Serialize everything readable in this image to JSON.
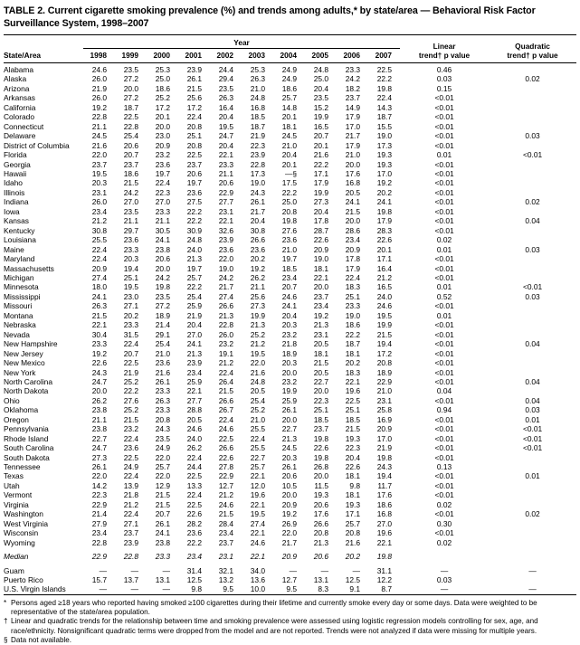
{
  "title": "TABLE 2. Current cigarette smoking prevalence (%) and trends among adults,* by state/area — Behavioral Risk Factor Surveillance System, 1998–2007",
  "table": {
    "col_state": "State/Area",
    "year_group_label": "Year",
    "years": [
      "1998",
      "1999",
      "2000",
      "2001",
      "2002",
      "2003",
      "2004",
      "2005",
      "2006",
      "2007"
    ],
    "col_linear_line1": "Linear",
    "col_linear_line2": "trend† p value",
    "col_quadratic_line1": "Quadratic",
    "col_quadratic_line2": "trend† p value",
    "rows": [
      {
        "name": "Alabama",
        "values": [
          "24.6",
          "23.5",
          "25.3",
          "23.9",
          "24.4",
          "25.3",
          "24.9",
          "24.8",
          "23.3",
          "22.5"
        ],
        "linear": "0.46",
        "quadratic": ""
      },
      {
        "name": "Alaska",
        "values": [
          "26.0",
          "27.2",
          "25.0",
          "26.1",
          "29.4",
          "26.3",
          "24.9",
          "25.0",
          "24.2",
          "22.2"
        ],
        "linear": "0.03",
        "quadratic": "0.02"
      },
      {
        "name": "Arizona",
        "values": [
          "21.9",
          "20.0",
          "18.6",
          "21.5",
          "23.5",
          "21.0",
          "18.6",
          "20.4",
          "18.2",
          "19.8"
        ],
        "linear": "0.15",
        "quadratic": ""
      },
      {
        "name": "Arkansas",
        "values": [
          "26.0",
          "27.2",
          "25.2",
          "25.6",
          "26.3",
          "24.8",
          "25.7",
          "23.5",
          "23.7",
          "22.4"
        ],
        "linear": "<0.01",
        "quadratic": ""
      },
      {
        "name": "California",
        "values": [
          "19.2",
          "18.7",
          "17.2",
          "17.2",
          "16.4",
          "16.8",
          "14.8",
          "15.2",
          "14.9",
          "14.3"
        ],
        "linear": "<0.01",
        "quadratic": ""
      },
      {
        "name": "Colorado",
        "values": [
          "22.8",
          "22.5",
          "20.1",
          "22.4",
          "20.4",
          "18.5",
          "20.1",
          "19.9",
          "17.9",
          "18.7"
        ],
        "linear": "<0.01",
        "quadratic": ""
      },
      {
        "name": "Connecticut",
        "values": [
          "21.1",
          "22.8",
          "20.0",
          "20.8",
          "19.5",
          "18.7",
          "18.1",
          "16.5",
          "17.0",
          "15.5"
        ],
        "linear": "<0.01",
        "quadratic": ""
      },
      {
        "name": "Delaware",
        "values": [
          "24.5",
          "25.4",
          "23.0",
          "25.1",
          "24.7",
          "21.9",
          "24.5",
          "20.7",
          "21.7",
          "19.0"
        ],
        "linear": "<0.01",
        "quadratic": "0.03"
      },
      {
        "name": "District of Columbia",
        "values": [
          "21.6",
          "20.6",
          "20.9",
          "20.8",
          "20.4",
          "22.3",
          "21.0",
          "20.1",
          "17.9",
          "17.3"
        ],
        "linear": "<0.01",
        "quadratic": ""
      },
      {
        "name": "Florida",
        "values": [
          "22.0",
          "20.7",
          "23.2",
          "22.5",
          "22.1",
          "23.9",
          "20.4",
          "21.6",
          "21.0",
          "19.3"
        ],
        "linear": "0.01",
        "quadratic": "<0.01"
      },
      {
        "name": "Georgia",
        "values": [
          "23.7",
          "23.7",
          "23.6",
          "23.7",
          "23.3",
          "22.8",
          "20.1",
          "22.2",
          "20.0",
          "19.3"
        ],
        "linear": "<0.01",
        "quadratic": ""
      },
      {
        "name": "Hawaii",
        "values": [
          "19.5",
          "18.6",
          "19.7",
          "20.6",
          "21.1",
          "17.3",
          "—§",
          "17.1",
          "17.6",
          "17.0"
        ],
        "linear": "<0.01",
        "quadratic": ""
      },
      {
        "name": "Idaho",
        "values": [
          "20.3",
          "21.5",
          "22.4",
          "19.7",
          "20.6",
          "19.0",
          "17.5",
          "17.9",
          "16.8",
          "19.2"
        ],
        "linear": "<0.01",
        "quadratic": ""
      },
      {
        "name": "Illinois",
        "values": [
          "23.1",
          "24.2",
          "22.3",
          "23.6",
          "22.9",
          "24.3",
          "22.2",
          "19.9",
          "20.5",
          "20.2"
        ],
        "linear": "<0.01",
        "quadratic": ""
      },
      {
        "name": "Indiana",
        "values": [
          "26.0",
          "27.0",
          "27.0",
          "27.5",
          "27.7",
          "26.1",
          "25.0",
          "27.3",
          "24.1",
          "24.1"
        ],
        "linear": "<0.01",
        "quadratic": "0.02"
      },
      {
        "name": "Iowa",
        "values": [
          "23.4",
          "23.5",
          "23.3",
          "22.2",
          "23.1",
          "21.7",
          "20.8",
          "20.4",
          "21.5",
          "19.8"
        ],
        "linear": "<0.01",
        "quadratic": ""
      },
      {
        "name": "Kansas",
        "values": [
          "21.2",
          "21.1",
          "21.1",
          "22.2",
          "22.1",
          "20.4",
          "19.8",
          "17.8",
          "20.0",
          "17.9"
        ],
        "linear": "<0.01",
        "quadratic": "0.04"
      },
      {
        "name": "Kentucky",
        "values": [
          "30.8",
          "29.7",
          "30.5",
          "30.9",
          "32.6",
          "30.8",
          "27.6",
          "28.7",
          "28.6",
          "28.3"
        ],
        "linear": "<0.01",
        "quadratic": ""
      },
      {
        "name": "Louisiana",
        "values": [
          "25.5",
          "23.6",
          "24.1",
          "24.8",
          "23.9",
          "26.6",
          "23.6",
          "22.6",
          "23.4",
          "22.6"
        ],
        "linear": "0.02",
        "quadratic": ""
      },
      {
        "name": "Maine",
        "values": [
          "22.4",
          "23.3",
          "23.8",
          "24.0",
          "23.6",
          "23.6",
          "21.0",
          "20.9",
          "20.9",
          "20.1"
        ],
        "linear": "0.01",
        "quadratic": "0.03"
      },
      {
        "name": "Maryland",
        "values": [
          "22.4",
          "20.3",
          "20.6",
          "21.3",
          "22.0",
          "20.2",
          "19.7",
          "19.0",
          "17.8",
          "17.1"
        ],
        "linear": "<0.01",
        "quadratic": ""
      },
      {
        "name": "Massachusetts",
        "values": [
          "20.9",
          "19.4",
          "20.0",
          "19.7",
          "19.0",
          "19.2",
          "18.5",
          "18.1",
          "17.9",
          "16.4"
        ],
        "linear": "<0.01",
        "quadratic": ""
      },
      {
        "name": "Michigan",
        "values": [
          "27.4",
          "25.1",
          "24.2",
          "25.7",
          "24.2",
          "26.2",
          "23.4",
          "22.1",
          "22.4",
          "21.2"
        ],
        "linear": "<0.01",
        "quadratic": ""
      },
      {
        "name": "Minnesota",
        "values": [
          "18.0",
          "19.5",
          "19.8",
          "22.2",
          "21.7",
          "21.1",
          "20.7",
          "20.0",
          "18.3",
          "16.5"
        ],
        "linear": "0.01",
        "quadratic": "<0.01"
      },
      {
        "name": "Mississippi",
        "values": [
          "24.1",
          "23.0",
          "23.5",
          "25.4",
          "27.4",
          "25.6",
          "24.6",
          "23.7",
          "25.1",
          "24.0"
        ],
        "linear": "0.52",
        "quadratic": "0.03"
      },
      {
        "name": "Missouri",
        "values": [
          "26.3",
          "27.1",
          "27.2",
          "25.9",
          "26.6",
          "27.3",
          "24.1",
          "23.4",
          "23.3",
          "24.6"
        ],
        "linear": "<0.01",
        "quadratic": ""
      },
      {
        "name": "Montana",
        "values": [
          "21.5",
          "20.2",
          "18.9",
          "21.9",
          "21.3",
          "19.9",
          "20.4",
          "19.2",
          "19.0",
          "19.5"
        ],
        "linear": "0.01",
        "quadratic": ""
      },
      {
        "name": "Nebraska",
        "values": [
          "22.1",
          "23.3",
          "21.4",
          "20.4",
          "22.8",
          "21.3",
          "20.3",
          "21.3",
          "18.6",
          "19.9"
        ],
        "linear": "<0.01",
        "quadratic": ""
      },
      {
        "name": "Nevada",
        "values": [
          "30.4",
          "31.5",
          "29.1",
          "27.0",
          "26.0",
          "25.2",
          "23.2",
          "23.1",
          "22.2",
          "21.5"
        ],
        "linear": "<0.01",
        "quadratic": ""
      },
      {
        "name": "New Hampshire",
        "values": [
          "23.3",
          "22.4",
          "25.4",
          "24.1",
          "23.2",
          "21.2",
          "21.8",
          "20.5",
          "18.7",
          "19.4"
        ],
        "linear": "<0.01",
        "quadratic": "0.04"
      },
      {
        "name": "New Jersey",
        "values": [
          "19.2",
          "20.7",
          "21.0",
          "21.3",
          "19.1",
          "19.5",
          "18.9",
          "18.1",
          "18.1",
          "17.2"
        ],
        "linear": "<0.01",
        "quadratic": ""
      },
      {
        "name": "New Mexico",
        "values": [
          "22.6",
          "22.5",
          "23.6",
          "23.9",
          "21.2",
          "22.0",
          "20.3",
          "21.5",
          "20.2",
          "20.8"
        ],
        "linear": "<0.01",
        "quadratic": ""
      },
      {
        "name": "New York",
        "values": [
          "24.3",
          "21.9",
          "21.6",
          "23.4",
          "22.4",
          "21.6",
          "20.0",
          "20.5",
          "18.3",
          "18.9"
        ],
        "linear": "<0.01",
        "quadratic": ""
      },
      {
        "name": "North Carolina",
        "values": [
          "24.7",
          "25.2",
          "26.1",
          "25.9",
          "26.4",
          "24.8",
          "23.2",
          "22.7",
          "22.1",
          "22.9"
        ],
        "linear": "<0.01",
        "quadratic": "0.04"
      },
      {
        "name": "North Dakota",
        "values": [
          "20.0",
          "22.2",
          "23.3",
          "22.1",
          "21.5",
          "20.5",
          "19.9",
          "20.0",
          "19.6",
          "21.0"
        ],
        "linear": "0.04",
        "quadratic": ""
      },
      {
        "name": "Ohio",
        "values": [
          "26.2",
          "27.6",
          "26.3",
          "27.7",
          "26.6",
          "25.4",
          "25.9",
          "22.3",
          "22.5",
          "23.1"
        ],
        "linear": "<0.01",
        "quadratic": "0.04"
      },
      {
        "name": "Oklahoma",
        "values": [
          "23.8",
          "25.2",
          "23.3",
          "28.8",
          "26.7",
          "25.2",
          "26.1",
          "25.1",
          "25.1",
          "25.8"
        ],
        "linear": "0.94",
        "quadratic": "0.03"
      },
      {
        "name": "Oregon",
        "values": [
          "21.1",
          "21.5",
          "20.8",
          "20.5",
          "22.4",
          "21.0",
          "20.0",
          "18.5",
          "18.5",
          "16.9"
        ],
        "linear": "<0.01",
        "quadratic": "0.01"
      },
      {
        "name": "Pennsylvania",
        "values": [
          "23.8",
          "23.2",
          "24.3",
          "24.6",
          "24.6",
          "25.5",
          "22.7",
          "23.7",
          "21.5",
          "20.9"
        ],
        "linear": "<0.01",
        "quadratic": "<0.01"
      },
      {
        "name": "Rhode Island",
        "values": [
          "22.7",
          "22.4",
          "23.5",
          "24.0",
          "22.5",
          "22.4",
          "21.3",
          "19.8",
          "19.3",
          "17.0"
        ],
        "linear": "<0.01",
        "quadratic": "<0.01"
      },
      {
        "name": "South Carolina",
        "values": [
          "24.7",
          "23.6",
          "24.9",
          "26.2",
          "26.6",
          "25.5",
          "24.5",
          "22.6",
          "22.3",
          "21.9"
        ],
        "linear": "<0.01",
        "quadratic": "<0.01"
      },
      {
        "name": "South Dakota",
        "values": [
          "27.3",
          "22.5",
          "22.0",
          "22.4",
          "22.6",
          "22.7",
          "20.3",
          "19.8",
          "20.4",
          "19.8"
        ],
        "linear": "<0.01",
        "quadratic": ""
      },
      {
        "name": "Tennessee",
        "values": [
          "26.1",
          "24.9",
          "25.7",
          "24.4",
          "27.8",
          "25.7",
          "26.1",
          "26.8",
          "22.6",
          "24.3"
        ],
        "linear": "0.13",
        "quadratic": ""
      },
      {
        "name": "Texas",
        "values": [
          "22.0",
          "22.4",
          "22.0",
          "22.5",
          "22.9",
          "22.1",
          "20.6",
          "20.0",
          "18.1",
          "19.4"
        ],
        "linear": "<0.01",
        "quadratic": "0.01"
      },
      {
        "name": "Utah",
        "values": [
          "14.2",
          "13.9",
          "12.9",
          "13.3",
          "12.7",
          "12.0",
          "10.5",
          "11.5",
          "9.8",
          "11.7"
        ],
        "linear": "<0.01",
        "quadratic": ""
      },
      {
        "name": "Vermont",
        "values": [
          "22.3",
          "21.8",
          "21.5",
          "22.4",
          "21.2",
          "19.6",
          "20.0",
          "19.3",
          "18.1",
          "17.6"
        ],
        "linear": "<0.01",
        "quadratic": ""
      },
      {
        "name": "Virginia",
        "values": [
          "22.9",
          "21.2",
          "21.5",
          "22.5",
          "24.6",
          "22.1",
          "20.9",
          "20.6",
          "19.3",
          "18.6"
        ],
        "linear": "0.02",
        "quadratic": ""
      },
      {
        "name": "Washington",
        "values": [
          "21.4",
          "22.4",
          "20.7",
          "22.6",
          "21.5",
          "19.5",
          "19.2",
          "17.6",
          "17.1",
          "16.8"
        ],
        "linear": "<0.01",
        "quadratic": "0.02"
      },
      {
        "name": "West Virginia",
        "values": [
          "27.9",
          "27.1",
          "26.1",
          "28.2",
          "28.4",
          "27.4",
          "26.9",
          "26.6",
          "25.7",
          "27.0"
        ],
        "linear": "0.30",
        "quadratic": ""
      },
      {
        "name": "Wisconsin",
        "values": [
          "23.4",
          "23.7",
          "24.1",
          "23.6",
          "23.4",
          "22.1",
          "22.0",
          "20.8",
          "20.8",
          "19.6"
        ],
        "linear": "<0.01",
        "quadratic": ""
      },
      {
        "name": "Wyoming",
        "values": [
          "22.8",
          "23.9",
          "23.8",
          "22.2",
          "23.7",
          "24.6",
          "21.7",
          "21.3",
          "21.6",
          "22.1"
        ],
        "linear": "0.02",
        "quadratic": ""
      }
    ],
    "median_row": {
      "name": "Median",
      "values": [
        "22.9",
        "22.8",
        "23.3",
        "23.4",
        "23.1",
        "22.1",
        "20.9",
        "20.6",
        "20.2",
        "19.8"
      ],
      "linear": "",
      "quadratic": ""
    },
    "territory_rows": [
      {
        "name": "Guam",
        "values": [
          "—",
          "—",
          "—",
          "31.4",
          "32.1",
          "34.0",
          "—",
          "—",
          "—",
          "31.1"
        ],
        "linear": "—",
        "quadratic": "—"
      },
      {
        "name": "Puerto Rico",
        "values": [
          "15.7",
          "13.7",
          "13.1",
          "12.5",
          "13.2",
          "13.6",
          "12.7",
          "13.1",
          "12.5",
          "12.2"
        ],
        "linear": "0.03",
        "quadratic": ""
      },
      {
        "name": "U.S. Virgin Islands",
        "values": [
          "—",
          "—",
          "—",
          "9.8",
          "9.5",
          "10.0",
          "9.5",
          "8.3",
          "9.1",
          "8.7"
        ],
        "linear": "—",
        "quadratic": "—"
      }
    ]
  },
  "footnotes": [
    {
      "marker": "*",
      "text": "Persons aged ≥18 years who reported having smoked ≥100 cigarettes during their lifetime and currently smoke every day or some days. Data were weighted to be representative of the state/area population."
    },
    {
      "marker": "†",
      "text": "Linear and quadratic trends for the relationship between time and smoking prevalence were assessed using logistic regression models controlling for sex, age, and race/ethnicity. Nonsignificant quadratic terms were dropped from the model and are not reported. Trends were not analyzed if data were missing for multiple years."
    },
    {
      "marker": "§",
      "text": "Data not available."
    }
  ]
}
